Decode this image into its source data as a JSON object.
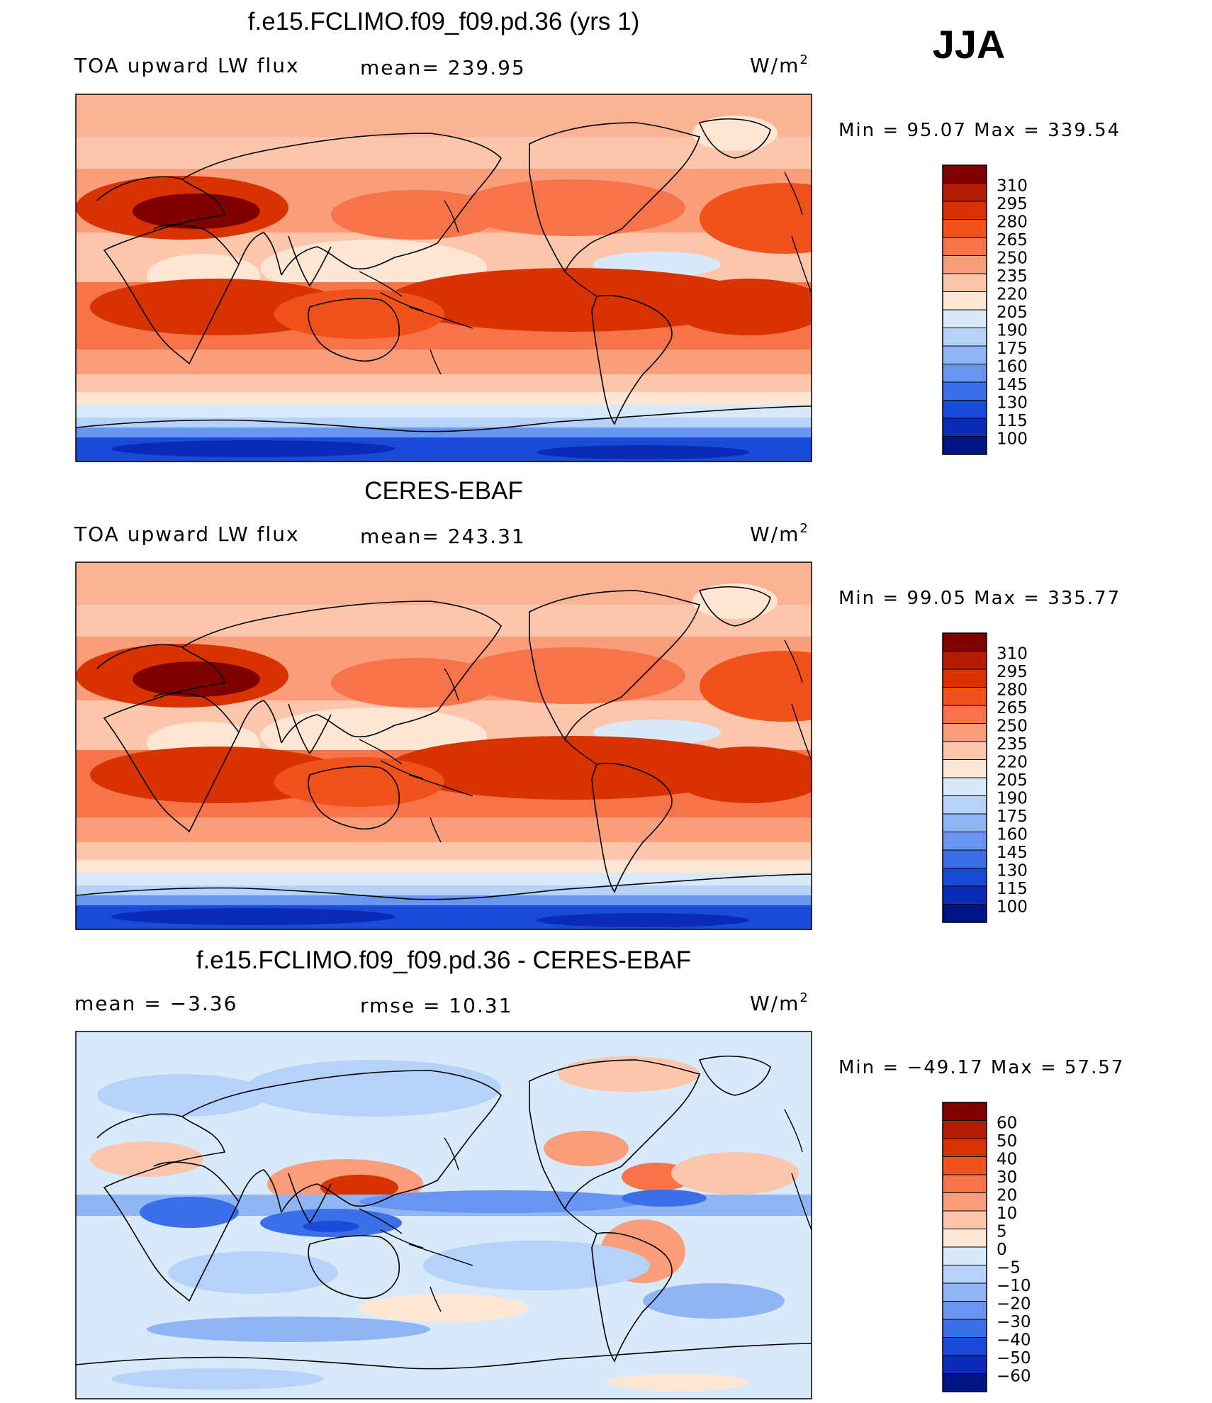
{
  "season": "JJA",
  "panels": [
    {
      "id": "model",
      "title": "f.e15.FCLIMO.f09_f09.pd.36 (yrs 1)",
      "left_label": "TOA upward LW flux",
      "center_label": "mean= 239.95",
      "units": "W/m",
      "units_sup": "2",
      "minmax": "Min =   95.07 Max = 339.54",
      "colorbar_labels": [
        "310",
        "295",
        "280",
        "265",
        "250",
        "235",
        "220",
        "205",
        "190",
        "175",
        "160",
        "145",
        "130",
        "115",
        "100"
      ]
    },
    {
      "id": "obs",
      "title": "CERES-EBAF",
      "left_label": "TOA upward LW flux",
      "center_label": "mean= 243.31",
      "units": "W/m",
      "units_sup": "2",
      "minmax": "Min =   99.05 Max = 335.77",
      "colorbar_labels": [
        "310",
        "295",
        "280",
        "265",
        "250",
        "235",
        "220",
        "205",
        "190",
        "175",
        "160",
        "145",
        "130",
        "115",
        "100"
      ]
    },
    {
      "id": "diff",
      "title": "f.e15.FCLIMO.f09_f09.pd.36 - CERES-EBAF",
      "left_label": "mean =   −3.36",
      "center_label": "rmse =    10.31",
      "units": "W/m",
      "units_sup": "2",
      "minmax": "Min = −49.17 Max =   57.57",
      "colorbar_labels": [
        "60",
        "50",
        "40",
        "30",
        "20",
        "10",
        "5",
        "0",
        "−5",
        "−10",
        "−20",
        "−30",
        "−40",
        "−50",
        "−60"
      ]
    }
  ],
  "colors": {
    "abs_scale": [
      "#7f0000",
      "#b31c00",
      "#d83200",
      "#f1521c",
      "#f7744a",
      "#f99d7a",
      "#fbc6ac",
      "#fee6d4",
      "#d8e9fa",
      "#b6d2f8",
      "#90b5f5",
      "#6795f0",
      "#3b6fe8",
      "#1a4ad8",
      "#0a2ab8",
      "#001585"
    ],
    "diff_scale": [
      "#7f0000",
      "#b31c00",
      "#d83200",
      "#f1521c",
      "#f7744a",
      "#f99d7a",
      "#fbc6ac",
      "#fee6d4",
      "#d8e9fa",
      "#b6d2f8",
      "#90b5f5",
      "#6795f0",
      "#3b6fe8",
      "#1a4ad8",
      "#0a2ab8",
      "#001585"
    ]
  }
}
